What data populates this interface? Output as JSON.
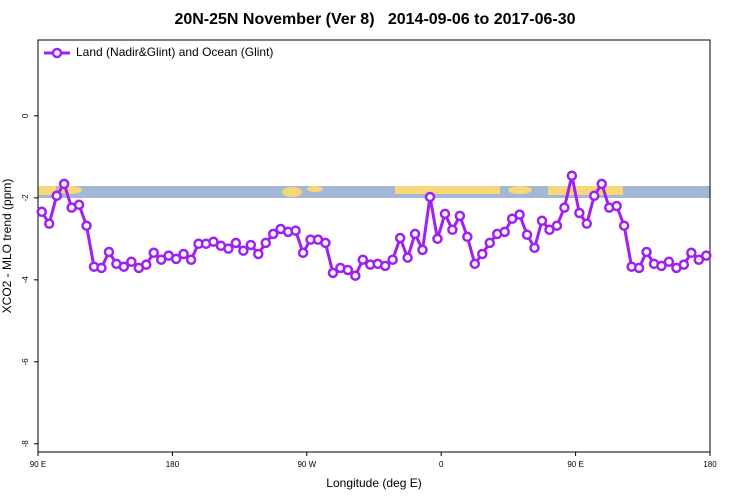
{
  "chart_data": {
    "type": "line",
    "title": "20N-25N November (Ver 8)   2014-09-06 to 2017-06-30",
    "x_label": "Longitude (deg E)",
    "y_label": "XCO2 - MLO trend (ppm)",
    "xlim": [
      90,
      540
    ],
    "ylim": [
      -8.2,
      1.85
    ],
    "xticks": [
      {
        "value": 90,
        "label": "90 E"
      },
      {
        "value": 180,
        "label": "180"
      },
      {
        "value": 270,
        "label": "90 W"
      },
      {
        "value": 360,
        "label": "0"
      },
      {
        "value": 450,
        "label": "90 E"
      },
      {
        "value": 540,
        "label": "180"
      }
    ],
    "yticks": [
      -8,
      -6,
      -4,
      -2,
      0
    ],
    "legend": "top-left",
    "x": [
      92.5,
      97.5,
      102.5,
      107.5,
      112.5,
      117.5,
      122.5,
      127.5,
      132.5,
      137.5,
      142.5,
      147.5,
      152.5,
      157.5,
      162.5,
      167.5,
      172.5,
      177.5,
      182.5,
      187.5,
      192.5,
      197.5,
      202.5,
      207.5,
      212.5,
      217.5,
      222.5,
      227.5,
      232.5,
      237.5,
      242.5,
      247.5,
      252.5,
      257.5,
      262.5,
      267.5,
      272.5,
      277.5,
      282.5,
      287.5,
      292.5,
      297.5,
      302.5,
      307.5,
      312.5,
      317.5,
      322.5,
      327.5,
      332.5,
      337.5,
      342.5,
      347.5,
      352.5,
      357.5,
      362.5,
      367.5,
      372.5,
      377.5,
      382.5,
      387.5,
      392.5,
      397.5,
      402.5,
      407.5,
      412.5,
      417.5,
      422.5,
      427.5,
      432.5,
      437.5,
      442.5,
      447.5,
      452.5,
      457.5,
      462.5,
      467.5,
      472.5,
      477.5,
      482.5,
      487.5,
      492.5,
      497.5,
      502.5,
      507.5,
      512.5,
      517.5,
      522.5,
      527.5,
      532.5,
      537.5
    ],
    "series": [
      {
        "name": "Land (Nadir&Glint) and Ocean (Glint)",
        "color": "#a020f0",
        "values": [
          -2.34,
          -2.63,
          -1.95,
          -1.66,
          -2.24,
          -2.17,
          -2.68,
          -3.68,
          -3.71,
          -3.32,
          -3.61,
          -3.68,
          -3.56,
          -3.71,
          -3.63,
          -3.34,
          -3.51,
          -3.41,
          -3.49,
          -3.37,
          -3.51,
          -3.12,
          -3.12,
          -3.07,
          -3.17,
          -3.24,
          -3.1,
          -3.29,
          -3.15,
          -3.37,
          -3.1,
          -2.88,
          -2.76,
          -2.83,
          -2.8,
          -3.34,
          -3.02,
          -3.02,
          -3.1,
          -3.83,
          -3.71,
          -3.76,
          -3.9,
          -3.51,
          -3.63,
          -3.61,
          -3.66,
          -3.51,
          -2.98,
          -3.46,
          -2.88,
          -3.27,
          -1.98,
          -3.0,
          -2.39,
          -2.78,
          -2.44,
          -2.95,
          -3.61,
          -3.37,
          -3.1,
          -2.88,
          -2.83,
          -2.51,
          -2.41,
          -2.9,
          -3.22,
          -2.56,
          -2.78,
          -2.68,
          -2.24,
          -1.46,
          -2.37,
          -2.63,
          -1.95,
          -1.66,
          -2.24,
          -2.2,
          -2.68,
          -3.68,
          -3.71,
          -3.32,
          -3.61,
          -3.66,
          -3.56,
          -3.71,
          -3.63,
          -3.34,
          -3.51,
          -3.41
        ]
      }
    ]
  }
}
